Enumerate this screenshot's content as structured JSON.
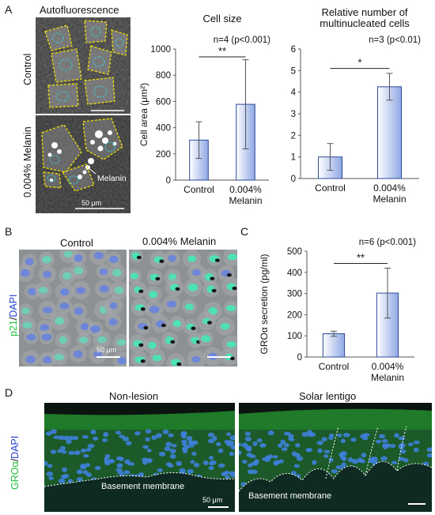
{
  "panels": {
    "A": {
      "label": "A",
      "image_title": "Autofluorescence",
      "row_labels": [
        "Control",
        "0.004% Melanin"
      ],
      "melanin_annotation": "Melanin",
      "scalebar_label": "50 μm"
    },
    "B": {
      "label": "B",
      "col_labels": [
        "Control",
        "0.004% Melanin"
      ],
      "ylabel_p21": "p21",
      "ylabel_sep": "/",
      "ylabel_dapi": "DAPI",
      "scalebar_label": "50 μm"
    },
    "C": {
      "label": "C"
    },
    "D": {
      "label": "D",
      "col_labels": [
        "Non-lesion",
        "Solar lentigo"
      ],
      "ylabel_gro": "GROα",
      "ylabel_sep": "/",
      "ylabel_dapi": "DAPI",
      "membrane_label": "Basement membrane",
      "scalebar_label": "50 μm"
    }
  },
  "chart_data": [
    {
      "type": "bar",
      "title": "Cell size",
      "stat": "n=4 (p<0.001)",
      "significance": "**",
      "ylabel": "Cell area (μm²)",
      "ylim": [
        0,
        1000
      ],
      "yticks": [
        0,
        200,
        400,
        600,
        800,
        1000
      ],
      "categories": [
        "Control",
        "0.004% Melanin"
      ],
      "category_lines": [
        [
          "Control"
        ],
        [
          "0.004%",
          "Melanin"
        ]
      ],
      "values": [
        305,
        578
      ],
      "errors": [
        140,
        340
      ]
    },
    {
      "type": "bar",
      "title": "Relative number of multinucleated cells",
      "title_lines": [
        "Relative number of",
        "multinucleated cells"
      ],
      "stat": "n=3 (p<0.01)",
      "significance": "*",
      "ylabel": "",
      "ylim": [
        0,
        6
      ],
      "yticks": [
        0,
        1,
        2,
        3,
        4,
        5,
        6
      ],
      "categories": [
        "Control",
        "0.004% Melanin"
      ],
      "category_lines": [
        [
          "Control"
        ],
        [
          "0.004%",
          "Melanin"
        ]
      ],
      "values": [
        1.0,
        4.25
      ],
      "errors": [
        0.62,
        0.62
      ]
    },
    {
      "type": "bar",
      "title": "",
      "stat": "n=6 (p<0.001)",
      "significance": "**",
      "ylabel": "GROα secretion (pg/ml)",
      "ylim": [
        0,
        500
      ],
      "yticks": [
        0,
        100,
        200,
        300,
        400,
        500
      ],
      "categories": [
        "Control",
        "0.004% Melanin"
      ],
      "category_lines": [
        [
          "Control"
        ],
        [
          "0.004%",
          "Melanin"
        ]
      ],
      "values": [
        110,
        302
      ],
      "errors": [
        12,
        118
      ]
    }
  ]
}
